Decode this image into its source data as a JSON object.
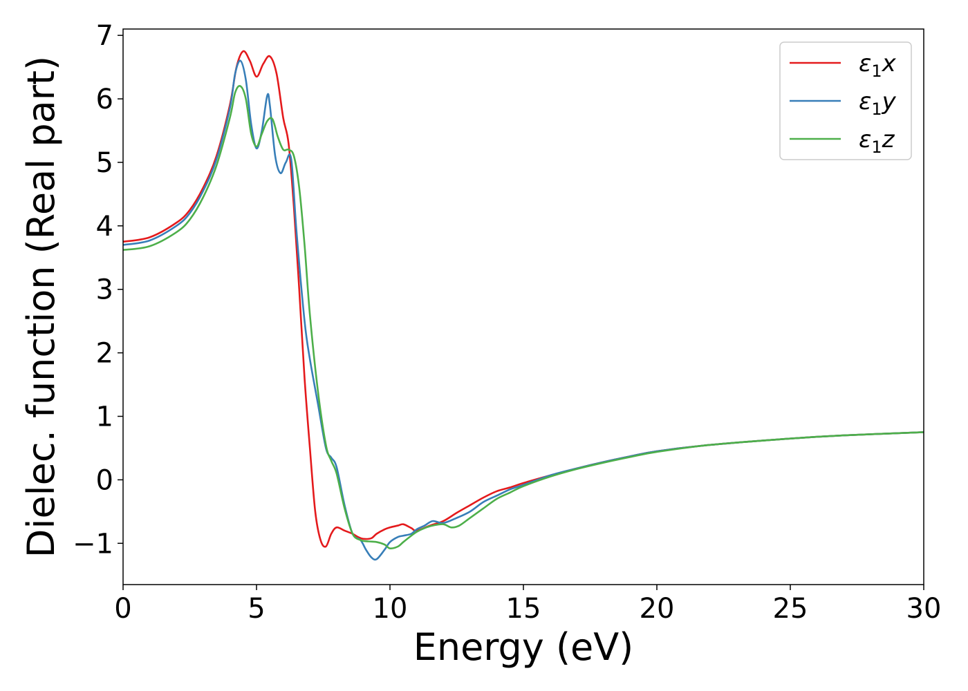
{
  "chart_data": {
    "type": "line",
    "xlabel": "Energy (eV)",
    "ylabel": "Dielec. function (Real part)",
    "xlim": [
      0,
      30
    ],
    "ylim": [
      -1.65,
      7.1
    ],
    "xticks": [
      0,
      5,
      10,
      15,
      20,
      25,
      30
    ],
    "xtick_labels": [
      "0",
      "5",
      "10",
      "15",
      "20",
      "25",
      "30"
    ],
    "yticks": [
      -1,
      0,
      1,
      2,
      3,
      4,
      5,
      6,
      7
    ],
    "ytick_labels": [
      "−1",
      "0",
      "1",
      "2",
      "3",
      "4",
      "5",
      "6",
      "7"
    ],
    "grid": false,
    "legend_position": "top-right",
    "series": [
      {
        "name": "ε1x",
        "legend": {
          "symbol": "ε",
          "sub": "1",
          "axis": "x"
        },
        "color": "#e41a1c",
        "x": [
          0,
          1,
          2,
          2.5,
          3,
          3.5,
          4,
          4.25,
          4.5,
          4.75,
          5,
          5.25,
          5.5,
          5.75,
          6,
          6.2,
          6.4,
          6.6,
          6.8,
          7,
          7.2,
          7.4,
          7.6,
          7.8,
          8,
          8.3,
          8.6,
          8.8,
          9,
          9.3,
          9.5,
          9.8,
          10,
          10.3,
          10.5,
          10.8,
          11,
          11.5,
          12,
          12.5,
          13,
          13.5,
          14,
          14.5,
          15,
          16,
          17,
          18,
          19,
          20,
          22,
          25,
          27,
          30
        ],
        "y": [
          3.75,
          3.82,
          4.05,
          4.25,
          4.6,
          5.1,
          5.9,
          6.5,
          6.75,
          6.6,
          6.35,
          6.55,
          6.67,
          6.4,
          5.7,
          5.3,
          4.3,
          3.0,
          1.6,
          0.5,
          -0.5,
          -0.95,
          -1.05,
          -0.85,
          -0.75,
          -0.8,
          -0.85,
          -0.9,
          -0.93,
          -0.92,
          -0.85,
          -0.78,
          -0.75,
          -0.72,
          -0.7,
          -0.76,
          -0.8,
          -0.72,
          -0.65,
          -0.52,
          -0.4,
          -0.28,
          -0.18,
          -0.12,
          -0.05,
          0.07,
          0.18,
          0.28,
          0.37,
          0.45,
          0.55,
          0.65,
          0.7,
          0.75
        ]
      },
      {
        "name": "ε1y",
        "legend": {
          "symbol": "ε",
          "sub": "1",
          "axis": "y"
        },
        "color": "#377eb8",
        "x": [
          0,
          1,
          2,
          2.5,
          3,
          3.5,
          4,
          4.2,
          4.4,
          4.6,
          4.8,
          5,
          5.2,
          5.4,
          5.5,
          5.7,
          5.9,
          6.1,
          6.3,
          6.5,
          6.8,
          7,
          7.3,
          7.6,
          7.8,
          8,
          8.3,
          8.6,
          8.9,
          9.1,
          9.3,
          9.5,
          9.8,
          10,
          10.3,
          10.5,
          10.8,
          11,
          11.3,
          11.6,
          12,
          12.5,
          13,
          13.5,
          14,
          14.5,
          15,
          16,
          17,
          18,
          19,
          20,
          22,
          25,
          27,
          30
        ],
        "y": [
          3.7,
          3.77,
          4.0,
          4.2,
          4.55,
          5.05,
          5.85,
          6.4,
          6.6,
          6.3,
          5.6,
          5.22,
          5.5,
          6.05,
          5.9,
          5.1,
          4.83,
          5.0,
          5.05,
          3.9,
          2.5,
          1.9,
          1.2,
          0.5,
          0.35,
          0.2,
          -0.4,
          -0.85,
          -0.95,
          -1.1,
          -1.22,
          -1.25,
          -1.1,
          -0.98,
          -0.9,
          -0.88,
          -0.85,
          -0.78,
          -0.72,
          -0.65,
          -0.68,
          -0.6,
          -0.5,
          -0.35,
          -0.25,
          -0.15,
          -0.08,
          0.07,
          0.18,
          0.28,
          0.37,
          0.45,
          0.55,
          0.65,
          0.7,
          0.75
        ]
      },
      {
        "name": "ε1z",
        "legend": {
          "symbol": "ε",
          "sub": "1",
          "axis": "z"
        },
        "color": "#4daf4a",
        "x": [
          0,
          1,
          2,
          2.5,
          3,
          3.5,
          4,
          4.2,
          4.4,
          4.6,
          4.8,
          5,
          5.2,
          5.4,
          5.6,
          5.8,
          6,
          6.2,
          6.4,
          6.6,
          6.8,
          7,
          7.3,
          7.6,
          7.8,
          8,
          8.3,
          8.6,
          8.9,
          9.2,
          9.5,
          9.8,
          10,
          10.3,
          10.5,
          10.8,
          11,
          11.3,
          11.6,
          12,
          12.3,
          12.6,
          13,
          13.5,
          14,
          14.5,
          15,
          16,
          17,
          18,
          19,
          20,
          22,
          25,
          27,
          30
        ],
        "y": [
          3.62,
          3.68,
          3.9,
          4.1,
          4.45,
          4.95,
          5.7,
          6.1,
          6.2,
          6.0,
          5.45,
          5.25,
          5.45,
          5.65,
          5.68,
          5.4,
          5.2,
          5.2,
          5.1,
          4.6,
          3.7,
          2.6,
          1.4,
          0.55,
          0.3,
          0.1,
          -0.45,
          -0.85,
          -0.95,
          -0.97,
          -0.98,
          -1.02,
          -1.08,
          -1.05,
          -0.98,
          -0.88,
          -0.82,
          -0.76,
          -0.72,
          -0.7,
          -0.75,
          -0.72,
          -0.6,
          -0.45,
          -0.3,
          -0.2,
          -0.1,
          0.05,
          0.17,
          0.27,
          0.36,
          0.44,
          0.55,
          0.65,
          0.7,
          0.75
        ]
      }
    ]
  }
}
